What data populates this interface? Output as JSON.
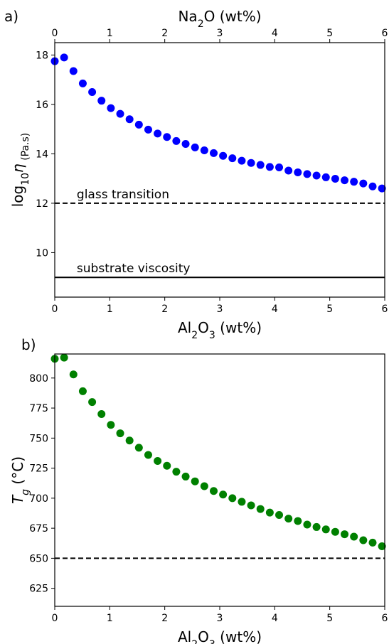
{
  "chart_data": [
    {
      "panel": "a)",
      "type": "scatter",
      "xlabel_parts": [
        "Al",
        "2",
        "O",
        "3",
        " (wt%)"
      ],
      "top_xlabel_parts": [
        "Na",
        "2",
        "O (wt%)"
      ],
      "ylabel_parts": [
        "log",
        "10",
        "η",
        " (Pa.s)"
      ],
      "xlim": [
        0,
        6
      ],
      "ylim": [
        8.2,
        18.5
      ],
      "xticks": [
        0,
        1,
        2,
        3,
        4,
        5,
        6
      ],
      "top_xticks": [
        0,
        1,
        2,
        3,
        4,
        5,
        6
      ],
      "yticks": [
        10,
        12,
        14,
        16,
        18
      ],
      "grid": false,
      "marker_color": "#0000ff",
      "series": [
        {
          "x": [
            0.0,
            0.17,
            0.34,
            0.51,
            0.68,
            0.85,
            1.02,
            1.19,
            1.36,
            1.53,
            1.7,
            1.87,
            2.04,
            2.21,
            2.38,
            2.55,
            2.72,
            2.89,
            3.06,
            3.23,
            3.4,
            3.57,
            3.74,
            3.91,
            4.08,
            4.25,
            4.42,
            4.59,
            4.76,
            4.93,
            5.1,
            5.27,
            5.44,
            5.61,
            5.78,
            5.95
          ],
          "y": [
            17.75,
            17.9,
            17.35,
            16.85,
            16.5,
            16.15,
            15.85,
            15.62,
            15.4,
            15.18,
            14.98,
            14.82,
            14.68,
            14.52,
            14.4,
            14.26,
            14.14,
            14.03,
            13.92,
            13.82,
            13.72,
            13.63,
            13.55,
            13.47,
            13.45,
            13.32,
            13.25,
            13.18,
            13.12,
            13.05,
            12.99,
            12.93,
            12.87,
            12.8,
            12.68,
            12.6
          ]
        }
      ],
      "hlines": [
        {
          "y": 12,
          "style": "dashed",
          "label": "glass transition",
          "label_x": 0.4
        },
        {
          "y": 9,
          "style": "solid",
          "label": "substrate viscosity",
          "label_x": 0.4
        }
      ]
    },
    {
      "panel": "b)",
      "type": "scatter",
      "xlabel_parts": [
        "Al",
        "2",
        "O",
        "3",
        " (wt%)"
      ],
      "ylabel_parts": [
        "T",
        "g",
        " (°C)"
      ],
      "xlim": [
        0,
        6
      ],
      "ylim": [
        610,
        820
      ],
      "xticks": [
        0,
        1,
        2,
        3,
        4,
        5,
        6
      ],
      "yticks": [
        625,
        650,
        675,
        700,
        725,
        750,
        775,
        800
      ],
      "grid": false,
      "marker_color": "#008000",
      "series": [
        {
          "x": [
            0.0,
            0.17,
            0.34,
            0.51,
            0.68,
            0.85,
            1.02,
            1.19,
            1.36,
            1.53,
            1.7,
            1.87,
            2.04,
            2.21,
            2.38,
            2.55,
            2.72,
            2.89,
            3.06,
            3.23,
            3.4,
            3.57,
            3.74,
            3.91,
            4.08,
            4.25,
            4.42,
            4.59,
            4.76,
            4.93,
            5.1,
            5.27,
            5.44,
            5.61,
            5.78,
            5.95
          ],
          "y": [
            816,
            817,
            803,
            789,
            780,
            770,
            761,
            754,
            748,
            742,
            736,
            731,
            727,
            722,
            718,
            714,
            710,
            706,
            703,
            700,
            697,
            694,
            691,
            688,
            686,
            683,
            681,
            678,
            676,
            674,
            672,
            670,
            668,
            665,
            663,
            660
          ]
        }
      ],
      "hlines": [
        {
          "y": 650,
          "style": "dashed"
        }
      ]
    }
  ]
}
